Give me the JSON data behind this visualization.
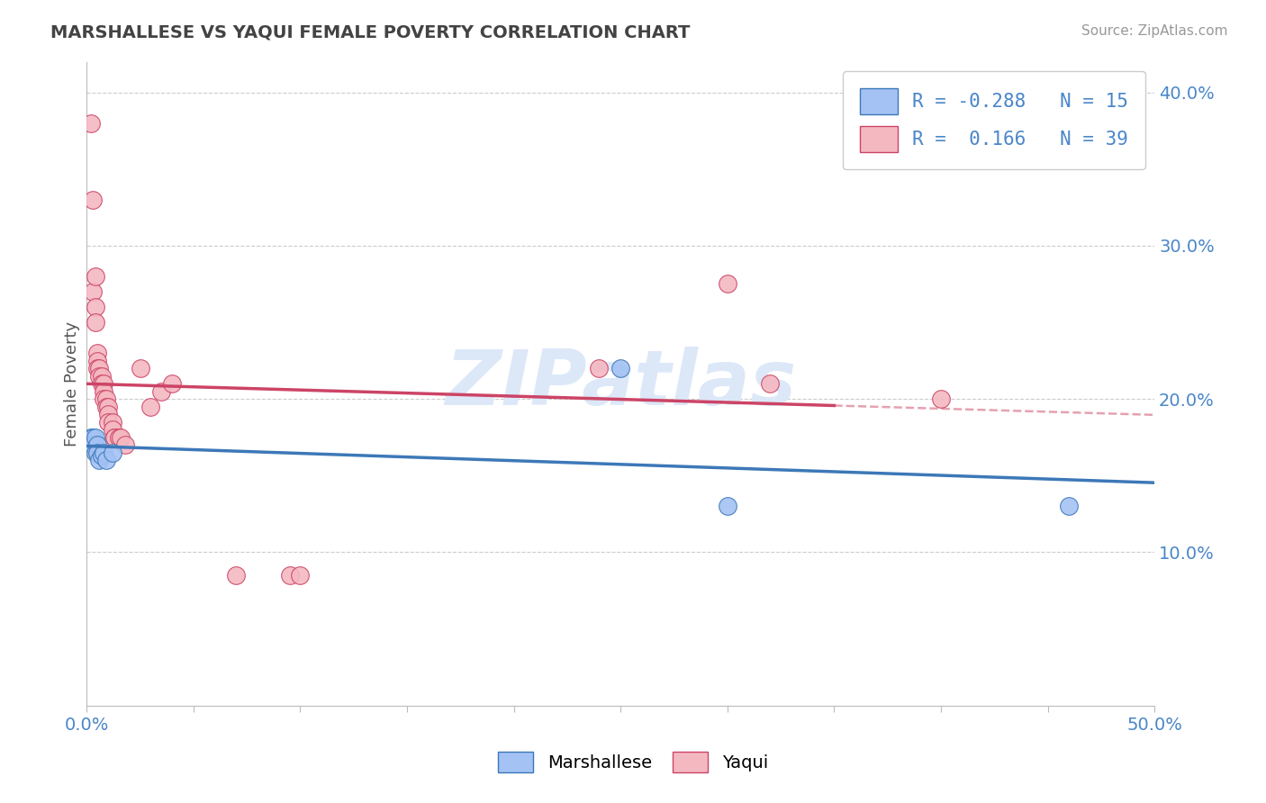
{
  "title": "MARSHALLESE VS YAQUI FEMALE POVERTY CORRELATION CHART",
  "source": "Source: ZipAtlas.com",
  "ylabel": "Female Poverty",
  "xlim": [
    0.0,
    0.5
  ],
  "ylim": [
    0.0,
    0.42
  ],
  "xticks": [
    0.0,
    0.05,
    0.1,
    0.15,
    0.2,
    0.25,
    0.3,
    0.35,
    0.4,
    0.45,
    0.5
  ],
  "yticks": [
    0.1,
    0.2,
    0.3,
    0.4
  ],
  "marshallese_R": -0.288,
  "marshallese_N": 15,
  "yaqui_R": 0.166,
  "yaqui_N": 39,
  "marshallese_color": "#a4c2f4",
  "yaqui_color": "#f4b8c1",
  "marshallese_line_color": "#3d78b8",
  "yaqui_line_color": "#cc4466",
  "background_color": "#ffffff",
  "grid_color": "#cccccc",
  "title_color": "#434343",
  "axis_label_color": "#555555",
  "tick_label_color": "#4a86c8",
  "watermark_color": "#dce8f8",
  "note_color": "#bbbbbb",
  "marshallese_x": [
    0.002,
    0.003,
    0.003,
    0.004,
    0.004,
    0.005,
    0.005,
    0.006,
    0.007,
    0.008,
    0.009,
    0.012,
    0.25,
    0.3,
    0.46
  ],
  "marshallese_y": [
    0.175,
    0.175,
    0.17,
    0.175,
    0.165,
    0.17,
    0.165,
    0.16,
    0.163,
    0.165,
    0.16,
    0.165,
    0.22,
    0.13,
    0.13
  ],
  "yaqui_x": [
    0.002,
    0.003,
    0.003,
    0.004,
    0.004,
    0.004,
    0.005,
    0.005,
    0.005,
    0.006,
    0.006,
    0.007,
    0.007,
    0.008,
    0.008,
    0.008,
    0.009,
    0.009,
    0.01,
    0.01,
    0.01,
    0.012,
    0.012,
    0.013,
    0.013,
    0.015,
    0.016,
    0.018,
    0.025,
    0.03,
    0.035,
    0.04,
    0.07,
    0.095,
    0.1,
    0.24,
    0.3,
    0.32,
    0.4
  ],
  "yaqui_y": [
    0.38,
    0.33,
    0.27,
    0.28,
    0.26,
    0.25,
    0.23,
    0.225,
    0.22,
    0.22,
    0.215,
    0.215,
    0.21,
    0.21,
    0.205,
    0.2,
    0.2,
    0.195,
    0.195,
    0.19,
    0.185,
    0.185,
    0.18,
    0.175,
    0.175,
    0.175,
    0.175,
    0.17,
    0.22,
    0.195,
    0.205,
    0.21,
    0.085,
    0.085,
    0.085,
    0.22,
    0.275,
    0.21,
    0.2
  ]
}
